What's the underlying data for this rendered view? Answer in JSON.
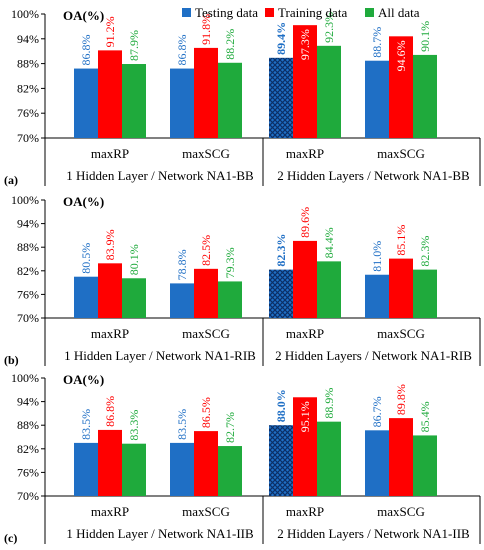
{
  "colors": {
    "testing": "#1f6fc5",
    "training": "#ff0000",
    "all": "#1faa3c",
    "axis": "#000000",
    "grid": "#d9d9d9"
  },
  "legend": [
    "Testing data",
    "Training data",
    "All data"
  ],
  "chart_data": [
    {
      "type": "bar",
      "panel_label": "(a)",
      "title": "OA(%)",
      "ylim": [
        70,
        100
      ],
      "yticks": [
        "70%",
        "76%",
        "82%",
        "88%",
        "94%",
        "100%"
      ],
      "groups": [
        "1 Hidden Layer / Network NA1-BB",
        "2 Hidden Layers / Network NA1-BB"
      ],
      "categories": [
        "maxRP",
        "maxSCG",
        "maxRP",
        "maxSCG"
      ],
      "series": [
        {
          "name": "Testing data",
          "values": [
            86.8,
            86.8,
            89.4,
            88.7
          ],
          "labels": [
            "86.8%",
            "86.8%",
            "89.4%",
            "88.7%"
          ]
        },
        {
          "name": "Training data",
          "values": [
            91.2,
            91.8,
            97.3,
            94.6
          ],
          "labels": [
            "91.2%",
            "91.8%",
            "97.3%",
            "94.6%"
          ]
        },
        {
          "name": "All data",
          "values": [
            87.9,
            88.2,
            92.3,
            90.1
          ],
          "labels": [
            "87.9%",
            "88.2%",
            "92.3%",
            "90.1%"
          ]
        }
      ],
      "hatched_bar_index": 2
    },
    {
      "type": "bar",
      "panel_label": "(b)",
      "title": "OA(%)",
      "ylim": [
        70,
        100
      ],
      "yticks": [
        "70%",
        "76%",
        "82%",
        "88%",
        "94%",
        "100%"
      ],
      "groups": [
        "1 Hidden Layer / Network NA1-RIB",
        "2 Hidden Layers / Network NA1-RIB"
      ],
      "categories": [
        "maxRP",
        "maxSCG",
        "maxRP",
        "maxSCG"
      ],
      "series": [
        {
          "name": "Testing data",
          "values": [
            80.5,
            78.8,
            82.3,
            81.0
          ],
          "labels": [
            "80.5%",
            "78.8%",
            "82.3%",
            "81.0%"
          ]
        },
        {
          "name": "Training data",
          "values": [
            83.9,
            82.5,
            89.6,
            85.1
          ],
          "labels": [
            "83.9%",
            "82.5%",
            "89.6%",
            "85.1%"
          ]
        },
        {
          "name": "All data",
          "values": [
            80.1,
            79.3,
            84.4,
            82.3
          ],
          "labels": [
            "80.1%",
            "79.3%",
            "84.4%",
            "82.3%"
          ]
        }
      ],
      "hatched_bar_index": 2
    },
    {
      "type": "bar",
      "panel_label": "(c)",
      "title": "OA(%)",
      "ylim": [
        70,
        100
      ],
      "yticks": [
        "70%",
        "76%",
        "82%",
        "88%",
        "94%",
        "100%"
      ],
      "groups": [
        "1 Hidden Layer / Network NA1-IIB",
        "2 Hidden Layers / Network NA1-IIB"
      ],
      "categories": [
        "maxRP",
        "maxSCG",
        "maxRP",
        "maxSCG"
      ],
      "series": [
        {
          "name": "Testing data",
          "values": [
            83.5,
            83.5,
            88.0,
            86.7
          ],
          "labels": [
            "83.5%",
            "83.5%",
            "88.0%",
            "86.7%"
          ]
        },
        {
          "name": "Training data",
          "values": [
            86.8,
            86.5,
            95.1,
            89.8
          ],
          "labels": [
            "86.8%",
            "86.5%",
            "95.1%",
            "89.8%"
          ]
        },
        {
          "name": "All data",
          "values": [
            83.3,
            82.7,
            88.9,
            85.4
          ],
          "labels": [
            "83.3%",
            "82.7%",
            "88.9%",
            "85.4%"
          ]
        }
      ],
      "hatched_bar_index": 2
    }
  ]
}
